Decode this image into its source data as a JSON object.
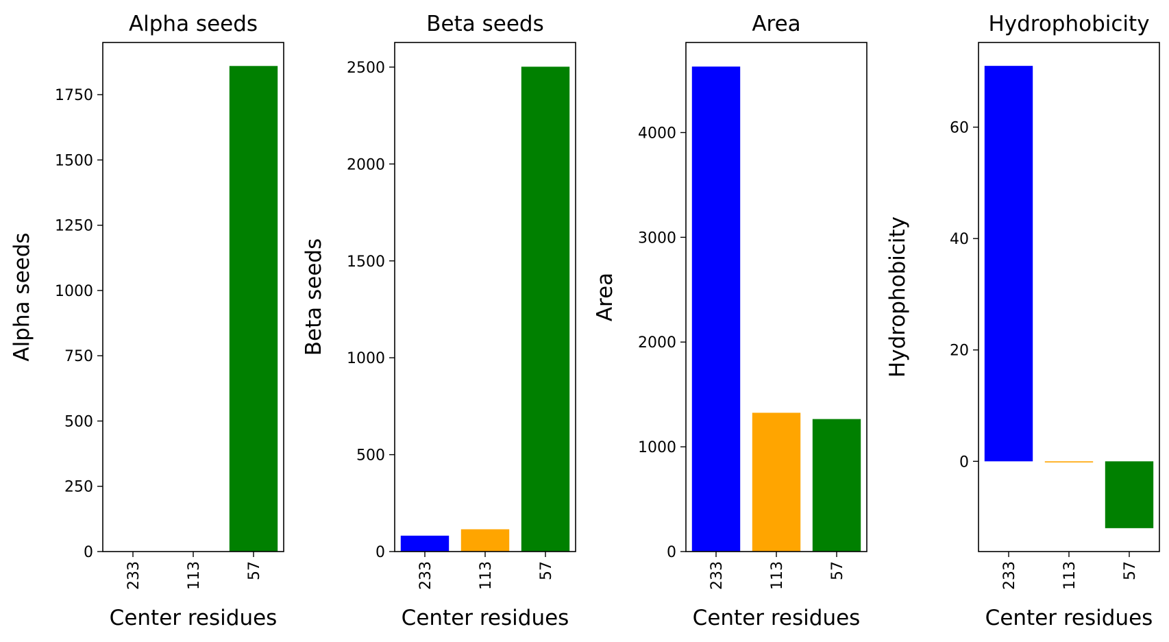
{
  "chart_data": [
    {
      "type": "bar",
      "title": "Alpha seeds",
      "xlabel": "Center residues",
      "ylabel": "Alpha seeds",
      "categories": [
        "233",
        "113",
        "57"
      ],
      "values": [
        0,
        0,
        1860
      ],
      "colors": [
        "#0000ff",
        "#ffa500",
        "#008000"
      ],
      "ylim": [
        0,
        1950
      ],
      "yticks": [
        0,
        250,
        500,
        750,
        1000,
        1250,
        1500,
        1750
      ],
      "grid": false
    },
    {
      "type": "bar",
      "title": "Beta seeds",
      "xlabel": "Center residues",
      "ylabel": "Beta seeds",
      "categories": [
        "233",
        "113",
        "57"
      ],
      "values": [
        82,
        115,
        2502
      ],
      "colors": [
        "#0000ff",
        "#ffa500",
        "#008000"
      ],
      "ylim": [
        0,
        2627
      ],
      "yticks": [
        0,
        500,
        1000,
        1500,
        2000,
        2500
      ],
      "grid": false
    },
    {
      "type": "bar",
      "title": "Area",
      "xlabel": "Center residues",
      "ylabel": "Area",
      "categories": [
        "233",
        "113",
        "57"
      ],
      "values": [
        4630,
        1325,
        1265
      ],
      "colors": [
        "#0000ff",
        "#ffa500",
        "#008000"
      ],
      "ylim": [
        0,
        4860
      ],
      "yticks": [
        0,
        1000,
        2000,
        3000,
        4000
      ],
      "grid": false
    },
    {
      "type": "bar",
      "title": "Hydrophobicity",
      "xlabel": "Center residues",
      "ylabel": "Hydrophobicity",
      "categories": [
        "233",
        "113",
        "57"
      ],
      "values": [
        71,
        -0.2,
        -12
      ],
      "colors": [
        "#0000ff",
        "#ffa500",
        "#008000"
      ],
      "ylim": [
        -16.2,
        75.2
      ],
      "yticks": [
        0,
        20,
        40,
        60
      ],
      "grid": false
    }
  ]
}
